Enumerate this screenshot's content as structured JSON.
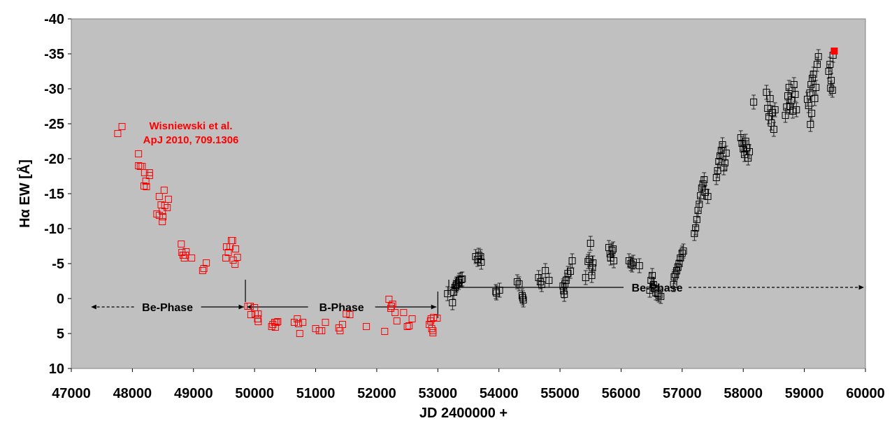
{
  "chart_data": {
    "type": "scatter",
    "xlabel": "JD 2400000 +",
    "ylabel": "Hα EW [Å]",
    "xlim": [
      47000,
      60000
    ],
    "ylim": [
      -40,
      10
    ],
    "y_inverted": true,
    "grid": false,
    "background": "#c0c0c0",
    "x_ticks": [
      "47000",
      "48000",
      "49000",
      "50000",
      "51000",
      "52000",
      "53000",
      "54000",
      "55000",
      "56000",
      "57000",
      "58000",
      "59000",
      "60000"
    ],
    "y_ticks": [
      "-40",
      "-35",
      "-30",
      "-25",
      "-20",
      "-15",
      "-10",
      "-5",
      "0",
      "5",
      "10"
    ],
    "annotation": {
      "line1": "Wisniewski et al.",
      "line2": "ApJ 2010, 709.1306",
      "color": "#ff0000"
    },
    "phases": [
      {
        "label": "Be-Phase",
        "x_start": 47300,
        "x_end": 49850,
        "y": 1.2,
        "left_style": "dashed",
        "right_style": "solid"
      },
      {
        "label": "B-Phase",
        "x_start": 49850,
        "x_end": 53000,
        "y": 1.2,
        "left_style": "solid",
        "right_style": "solid"
      },
      {
        "label": "Be-Phase",
        "x_start": 53180,
        "x_end": 60000,
        "y": -1.6,
        "left_style": "solid",
        "right_style": "dashed"
      }
    ],
    "phase_boundaries": [
      {
        "x": 49850,
        "y_from": -2.7,
        "y_to": 0.5
      },
      {
        "x": 53000,
        "y_from": -1.0,
        "y_to": 2.8
      },
      {
        "x": 53180,
        "y_from": -2.7,
        "y_to": -0.5
      }
    ],
    "series": [
      {
        "color": "#ff0000",
        "marker": "open-square",
        "points": [
          [
            47760,
            -23.6
          ],
          [
            47830,
            -24.6
          ],
          [
            48100,
            -20.7
          ],
          [
            48100,
            -19.0
          ],
          [
            48130,
            -18.9
          ],
          [
            48160,
            -18.9
          ],
          [
            48200,
            -18.0
          ],
          [
            48190,
            -16.1
          ],
          [
            48230,
            -16.0
          ],
          [
            48220,
            -16.8
          ],
          [
            48280,
            -17.6
          ],
          [
            48280,
            -18.0
          ],
          [
            48400,
            -12.1
          ],
          [
            48440,
            -11.9
          ],
          [
            48440,
            -14.6
          ],
          [
            48470,
            -13.4
          ],
          [
            48490,
            -12.5
          ],
          [
            48490,
            -11.0
          ],
          [
            48500,
            -11.7
          ],
          [
            48520,
            -15.5
          ],
          [
            48530,
            -13.3
          ],
          [
            48570,
            -13.0
          ],
          [
            48590,
            -14.2
          ],
          [
            48800,
            -7.8
          ],
          [
            48810,
            -6.6
          ],
          [
            48830,
            -6.2
          ],
          [
            48850,
            -5.8
          ],
          [
            48880,
            -6.7
          ],
          [
            48870,
            -6.2
          ],
          [
            48970,
            -5.8
          ],
          [
            49150,
            -4.0
          ],
          [
            49170,
            -4.3
          ],
          [
            49210,
            -5.1
          ],
          [
            49530,
            -5.8
          ],
          [
            49540,
            -7.4
          ],
          [
            49570,
            -6.6
          ],
          [
            49600,
            -7.4
          ],
          [
            49620,
            -8.3
          ],
          [
            49640,
            -8.3
          ],
          [
            49650,
            -5.5
          ],
          [
            49680,
            -4.9
          ],
          [
            49690,
            -7.1
          ],
          [
            49720,
            -5.9
          ],
          [
            49890,
            1.1
          ],
          [
            49930,
            1.1
          ],
          [
            49940,
            2.3
          ],
          [
            50000,
            1.3
          ],
          [
            50010,
            2.2
          ],
          [
            50050,
            2.9
          ],
          [
            50060,
            3.3
          ],
          [
            50060,
            2.2
          ],
          [
            50280,
            4.0
          ],
          [
            50300,
            3.7
          ],
          [
            50330,
            3.4
          ],
          [
            50340,
            4.1
          ],
          [
            50360,
            3.4
          ],
          [
            50380,
            3.3
          ],
          [
            50650,
            3.4
          ],
          [
            50700,
            2.9
          ],
          [
            50720,
            3.6
          ],
          [
            50740,
            5.0
          ],
          [
            50790,
            3.4
          ],
          [
            51000,
            4.3
          ],
          [
            51060,
            4.6
          ],
          [
            51100,
            4.6
          ],
          [
            51160,
            3.4
          ],
          [
            51380,
            4.2
          ],
          [
            51400,
            4.6
          ],
          [
            51440,
            3.7
          ],
          [
            51500,
            2.2
          ],
          [
            51560,
            2.3
          ],
          [
            51830,
            4.0
          ],
          [
            52130,
            4.7
          ],
          [
            52200,
            0.1
          ],
          [
            52230,
            1.4
          ],
          [
            52240,
            1.1
          ],
          [
            52260,
            0.8
          ],
          [
            52300,
            2.0
          ],
          [
            52330,
            3.2
          ],
          [
            52440,
            2.0
          ],
          [
            52500,
            4.0
          ],
          [
            52530,
            3.9
          ],
          [
            52580,
            2.9
          ],
          [
            52860,
            3.7
          ],
          [
            52880,
            3.2
          ],
          [
            52890,
            2.9
          ],
          [
            52900,
            4.3
          ],
          [
            52920,
            4.6
          ],
          [
            52920,
            4.9
          ],
          [
            52930,
            2.7
          ],
          [
            52990,
            2.8
          ]
        ]
      },
      {
        "color": "#000000",
        "marker": "open-square",
        "points": [
          [
            53160,
            -0.7
          ],
          [
            53240,
            0.6
          ],
          [
            53260,
            -0.9
          ],
          [
            53280,
            -1.6
          ],
          [
            53300,
            -1.9
          ],
          [
            53310,
            -2.1
          ],
          [
            53340,
            -2.3
          ],
          [
            53350,
            -2.6
          ],
          [
            53380,
            -2.7
          ],
          [
            53400,
            -2.8
          ],
          [
            53620,
            -6.0
          ],
          [
            53650,
            -5.6
          ],
          [
            53670,
            -6.2
          ],
          [
            53700,
            -6.0
          ],
          [
            53710,
            -5.2
          ],
          [
            53950,
            -1.0
          ],
          [
            53960,
            -0.8
          ],
          [
            54010,
            -1.2
          ],
          [
            54300,
            -2.4
          ],
          [
            54330,
            -2.1
          ],
          [
            54380,
            -0.4
          ],
          [
            54390,
            -0.1
          ],
          [
            54400,
            0.2
          ],
          [
            54650,
            -3.0
          ],
          [
            54680,
            -2.4
          ],
          [
            54700,
            -2.0
          ],
          [
            54760,
            -4.0
          ],
          [
            54820,
            -2.6
          ],
          [
            55050,
            -1.8
          ],
          [
            55060,
            -1.1
          ],
          [
            55070,
            -0.6
          ],
          [
            55080,
            -2.1
          ],
          [
            55100,
            -2.6
          ],
          [
            55130,
            -3.6
          ],
          [
            55170,
            -3.9
          ],
          [
            55200,
            -5.4
          ],
          [
            55420,
            -3.0
          ],
          [
            55460,
            -5.3
          ],
          [
            55480,
            -5.6
          ],
          [
            55500,
            -7.9
          ],
          [
            55520,
            -3.3
          ],
          [
            55530,
            -4.4
          ],
          [
            55540,
            -5.1
          ],
          [
            55800,
            -7.3
          ],
          [
            55820,
            -6.4
          ],
          [
            55830,
            -5.8
          ],
          [
            55850,
            -6.9
          ],
          [
            55870,
            -7.1
          ],
          [
            55880,
            -5.4
          ],
          [
            56130,
            -5.4
          ],
          [
            56160,
            -5.0
          ],
          [
            56180,
            -4.8
          ],
          [
            56200,
            -5.2
          ],
          [
            56300,
            -4.7
          ],
          [
            56470,
            -1.2
          ],
          [
            56490,
            -2.6
          ],
          [
            56510,
            -3.3
          ],
          [
            56530,
            -2.0
          ],
          [
            56550,
            -1.4
          ],
          [
            56570,
            -0.8
          ],
          [
            56600,
            -0.7
          ],
          [
            56620,
            -0.5
          ],
          [
            56650,
            -0.3
          ],
          [
            56860,
            -2.0
          ],
          [
            56870,
            -3.1
          ],
          [
            56890,
            -3.4
          ],
          [
            56910,
            -4.0
          ],
          [
            56930,
            -4.5
          ],
          [
            56950,
            -5.0
          ],
          [
            56970,
            -5.8
          ],
          [
            57000,
            -6.5
          ],
          [
            57020,
            -6.8
          ],
          [
            57200,
            -9.3
          ],
          [
            57220,
            -10.1
          ],
          [
            57240,
            -11.3
          ],
          [
            57260,
            -12.6
          ],
          [
            57280,
            -13.5
          ],
          [
            57300,
            -14.7
          ],
          [
            57320,
            -15.8
          ],
          [
            57340,
            -16.4
          ],
          [
            57360,
            -17.0
          ],
          [
            57380,
            -15.2
          ],
          [
            57420,
            -14.6
          ],
          [
            57560,
            -17.3
          ],
          [
            57580,
            -18.3
          ],
          [
            57600,
            -19.6
          ],
          [
            57620,
            -20.4
          ],
          [
            57640,
            -21.2
          ],
          [
            57660,
            -22.0
          ],
          [
            57680,
            -18.7
          ],
          [
            57700,
            -19.4
          ],
          [
            57720,
            -20.8
          ],
          [
            57960,
            -23.0
          ],
          [
            57980,
            -22.2
          ],
          [
            58000,
            -21.4
          ],
          [
            58020,
            -20.6
          ],
          [
            58040,
            -22.5
          ],
          [
            58060,
            -21.6
          ],
          [
            58080,
            -20.1
          ],
          [
            58100,
            -21.0
          ],
          [
            58170,
            -28.1
          ],
          [
            58380,
            -29.5
          ],
          [
            58400,
            -27.2
          ],
          [
            58420,
            -26.0
          ],
          [
            58440,
            -28.6
          ],
          [
            58460,
            -25.1
          ],
          [
            58480,
            -26.6
          ],
          [
            58500,
            -24.2
          ],
          [
            58520,
            -27.0
          ],
          [
            58690,
            -26.2
          ],
          [
            58710,
            -27.4
          ],
          [
            58730,
            -29.0
          ],
          [
            58750,
            -30.2
          ],
          [
            58770,
            -27.5
          ],
          [
            58790,
            -28.4
          ],
          [
            58810,
            -26.8
          ],
          [
            58830,
            -30.6
          ],
          [
            58850,
            -29.2
          ],
          [
            58870,
            -27.0
          ],
          [
            59050,
            -28.5
          ],
          [
            59070,
            -27.6
          ],
          [
            59090,
            -29.4
          ],
          [
            59110,
            -30.6
          ],
          [
            59130,
            -31.5
          ],
          [
            59150,
            -32.1
          ],
          [
            59170,
            -28.6
          ],
          [
            59190,
            -30.2
          ],
          [
            59210,
            -33.5
          ],
          [
            59230,
            -34.6
          ],
          [
            59100,
            -24.9
          ],
          [
            59120,
            -26.5
          ],
          [
            59400,
            -32.5
          ],
          [
            59420,
            -33.5
          ],
          [
            59430,
            -30.1
          ],
          [
            59440,
            -31.2
          ],
          [
            59460,
            -29.8
          ],
          [
            59470,
            -34.8
          ]
        ]
      },
      {
        "color": "#ff0000",
        "marker": "filled-square",
        "points": [
          [
            59490,
            -35.4
          ]
        ]
      }
    ]
  }
}
